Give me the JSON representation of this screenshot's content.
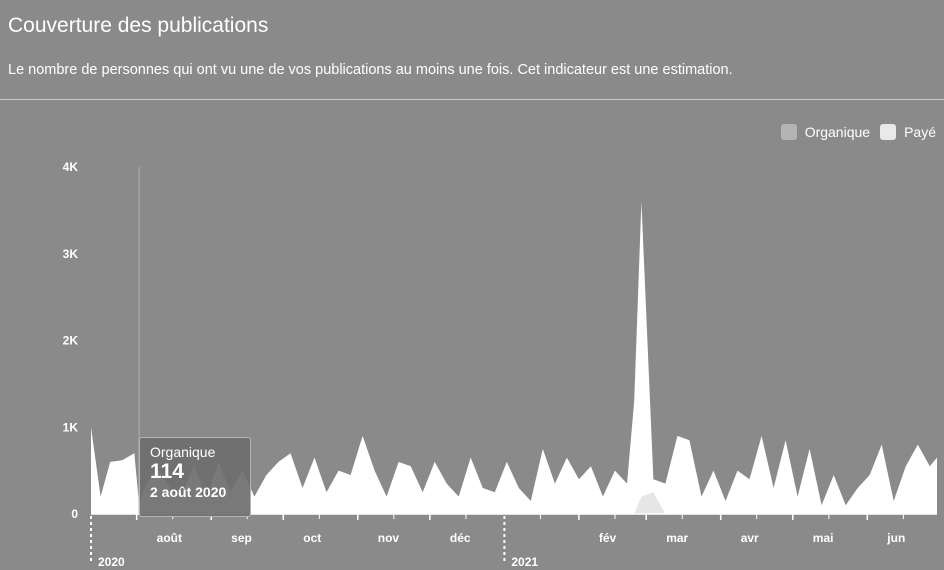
{
  "header": {
    "title": "Couverture des publications",
    "subtitle": "Le nombre de personnes qui ont vu une de vos publications au moins une fois. Cet indicateur est une estimation."
  },
  "legend": [
    {
      "label": "Organique",
      "color": "#b4b4b4"
    },
    {
      "label": "Payé",
      "color": "#e9e9e9"
    }
  ],
  "tooltip": {
    "series": "Organique",
    "value": "114",
    "date": "2 août 2020"
  },
  "colors": {
    "background": "#8a8a8a",
    "organic_fill": "#ffffff",
    "paid_fill": "#e6e6e6"
  },
  "chart_data": {
    "type": "area",
    "yticks": [
      {
        "value": 0,
        "label": "0"
      },
      {
        "value": 1000,
        "label": "1K"
      },
      {
        "value": 2000,
        "label": "2K"
      },
      {
        "value": 3000,
        "label": "3K"
      },
      {
        "value": 4000,
        "label": "4K"
      }
    ],
    "ylim": [
      0,
      4000
    ],
    "x_start": "2020-07-13",
    "x_end": "2021-06-30",
    "month_ticks": [
      {
        "date": "2020-08-01",
        "label": "août"
      },
      {
        "date": "2020-09-01",
        "label": "sep"
      },
      {
        "date": "2020-10-01",
        "label": "oct"
      },
      {
        "date": "2020-11-01",
        "label": "nov"
      },
      {
        "date": "2020-12-01",
        "label": "déc"
      },
      {
        "date": "2021-02-01",
        "label": "fév"
      },
      {
        "date": "2021-03-01",
        "label": "mar"
      },
      {
        "date": "2021-04-01",
        "label": "avr"
      },
      {
        "date": "2021-05-01",
        "label": "mai"
      },
      {
        "date": "2021-06-01",
        "label": "jun"
      }
    ],
    "year_ticks": [
      {
        "date": "2020-07-13",
        "label": "2020"
      },
      {
        "date": "2021-01-01",
        "label": "2021"
      }
    ],
    "series": [
      {
        "name": "Organique",
        "x": [
          "2020-07-13",
          "2020-07-17",
          "2020-07-21",
          "2020-07-26",
          "2020-07-31",
          "2020-08-02",
          "2020-08-05",
          "2020-08-10",
          "2020-08-15",
          "2020-08-20",
          "2020-08-25",
          "2020-08-30",
          "2020-09-04",
          "2020-09-09",
          "2020-09-14",
          "2020-09-19",
          "2020-09-24",
          "2020-09-29",
          "2020-10-04",
          "2020-10-09",
          "2020-10-14",
          "2020-10-19",
          "2020-10-24",
          "2020-10-29",
          "2020-11-03",
          "2020-11-08",
          "2020-11-13",
          "2020-11-18",
          "2020-11-23",
          "2020-11-28",
          "2020-12-03",
          "2020-12-08",
          "2020-12-13",
          "2020-12-18",
          "2020-12-23",
          "2020-12-28",
          "2021-01-02",
          "2021-01-07",
          "2021-01-12",
          "2021-01-17",
          "2021-01-22",
          "2021-01-27",
          "2021-02-01",
          "2021-02-06",
          "2021-02-11",
          "2021-02-16",
          "2021-02-21",
          "2021-02-24",
          "2021-02-27",
          "2021-03-04",
          "2021-03-09",
          "2021-03-14",
          "2021-03-19",
          "2021-03-24",
          "2021-03-29",
          "2021-04-03",
          "2021-04-08",
          "2021-04-13",
          "2021-04-18",
          "2021-04-23",
          "2021-04-28",
          "2021-05-03",
          "2021-05-08",
          "2021-05-13",
          "2021-05-18",
          "2021-05-23",
          "2021-05-28",
          "2021-06-02",
          "2021-06-07",
          "2021-06-12",
          "2021-06-17",
          "2021-06-22",
          "2021-06-27",
          "2021-06-30"
        ],
        "y": [
          1000,
          200,
          600,
          620,
          700,
          114,
          350,
          520,
          300,
          250,
          560,
          180,
          600,
          250,
          500,
          200,
          450,
          600,
          700,
          300,
          650,
          250,
          500,
          450,
          900,
          500,
          200,
          600,
          550,
          250,
          600,
          350,
          200,
          650,
          300,
          250,
          600,
          300,
          150,
          750,
          350,
          650,
          400,
          550,
          200,
          500,
          350,
          1300,
          3600,
          400,
          350,
          900,
          850,
          200,
          500,
          150,
          500,
          400,
          900,
          300,
          850,
          200,
          750,
          100,
          450,
          100,
          300,
          450,
          800,
          150,
          550,
          800,
          550,
          650
        ]
      },
      {
        "name": "Payé",
        "x": [
          "2021-02-24",
          "2021-02-27",
          "2021-03-04",
          "2021-03-09"
        ],
        "y": [
          0,
          200,
          250,
          0
        ]
      }
    ]
  }
}
